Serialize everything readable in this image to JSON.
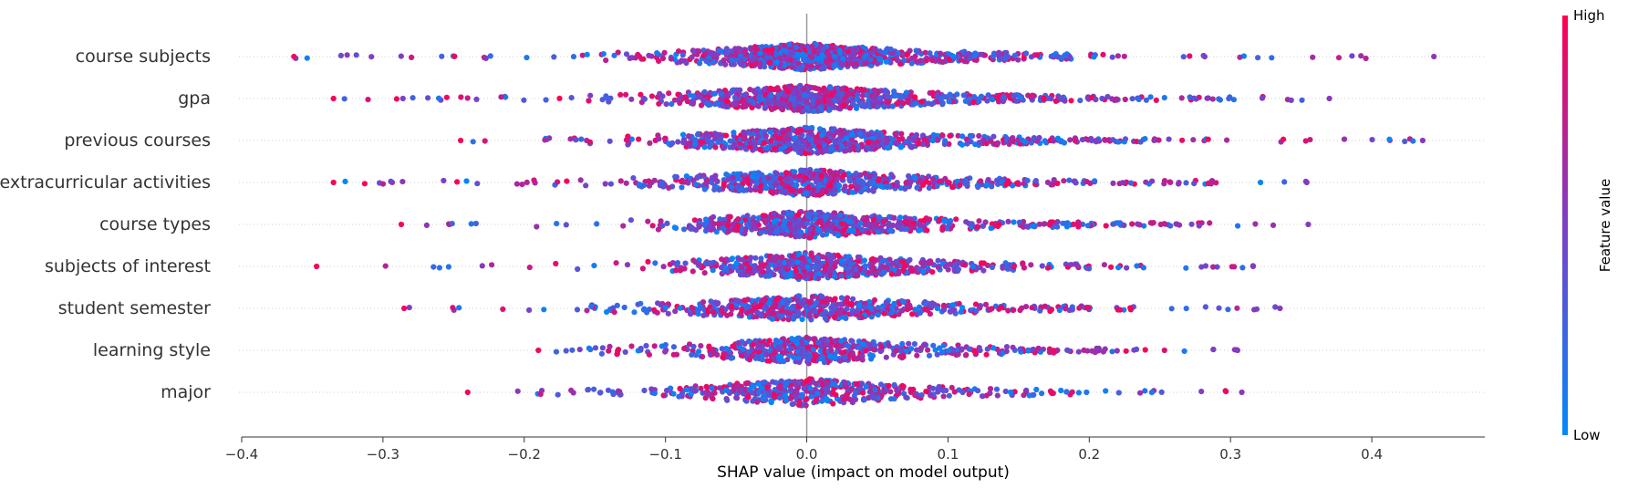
{
  "chart_data": {
    "type": "scatter",
    "subtype": "shap-beeswarm",
    "xlabel": "SHAP value (impact on model output)",
    "xlim": [
      -0.4,
      0.48
    ],
    "xticks": [
      -0.4,
      -0.3,
      -0.2,
      -0.1,
      0.0,
      0.1,
      0.2,
      0.3,
      0.4
    ],
    "xtick_labels": [
      "−0.4",
      "−0.3",
      "−0.2",
      "−0.1",
      "0.0",
      "0.1",
      "0.2",
      "0.3",
      "0.4"
    ],
    "zero_line": 0.0,
    "row_gridlines": "dotted",
    "features": [
      {
        "name": "course subjects",
        "min": -0.363,
        "max": 0.444,
        "spread_left": -0.17,
        "spread_right": 0.25,
        "density": 1.0
      },
      {
        "name": "gpa",
        "min": -0.335,
        "max": 0.37,
        "spread_left": -0.17,
        "spread_right": 0.32,
        "density": 0.95
      },
      {
        "name": "previous courses",
        "min": -0.245,
        "max": 0.436,
        "spread_left": -0.18,
        "spread_right": 0.3,
        "density": 0.85
      },
      {
        "name": "extracurricular activities",
        "min": -0.335,
        "max": 0.354,
        "spread_left": -0.2,
        "spread_right": 0.3,
        "density": 0.8
      },
      {
        "name": "course types",
        "min": -0.287,
        "max": 0.355,
        "spread_left": -0.13,
        "spread_right": 0.3,
        "density": 0.75
      },
      {
        "name": "subjects of interest",
        "min": -0.347,
        "max": 0.316,
        "spread_left": -0.13,
        "spread_right": 0.25,
        "density": 0.72
      },
      {
        "name": "student semester",
        "min": -0.285,
        "max": 0.335,
        "spread_left": -0.17,
        "spread_right": 0.25,
        "density": 0.68
      },
      {
        "name": "learning style",
        "min": -0.19,
        "max": 0.305,
        "spread_left": -0.19,
        "spread_right": 0.3,
        "density": 0.62
      },
      {
        "name": "major",
        "min": -0.24,
        "max": 0.308,
        "spread_left": -0.2,
        "spread_right": 0.25,
        "density": 0.58
      }
    ],
    "colorbar": {
      "title": "Feature value",
      "high_label": "High",
      "low_label": "Low",
      "low_color": "#008afb",
      "high_color": "#ff0052"
    },
    "colors": {
      "low": "#008afb",
      "mid": "#7c3fc8",
      "high": "#ff0052",
      "axis": "#333333",
      "zero_line": "#999999",
      "gridline": "#cccccc"
    }
  }
}
